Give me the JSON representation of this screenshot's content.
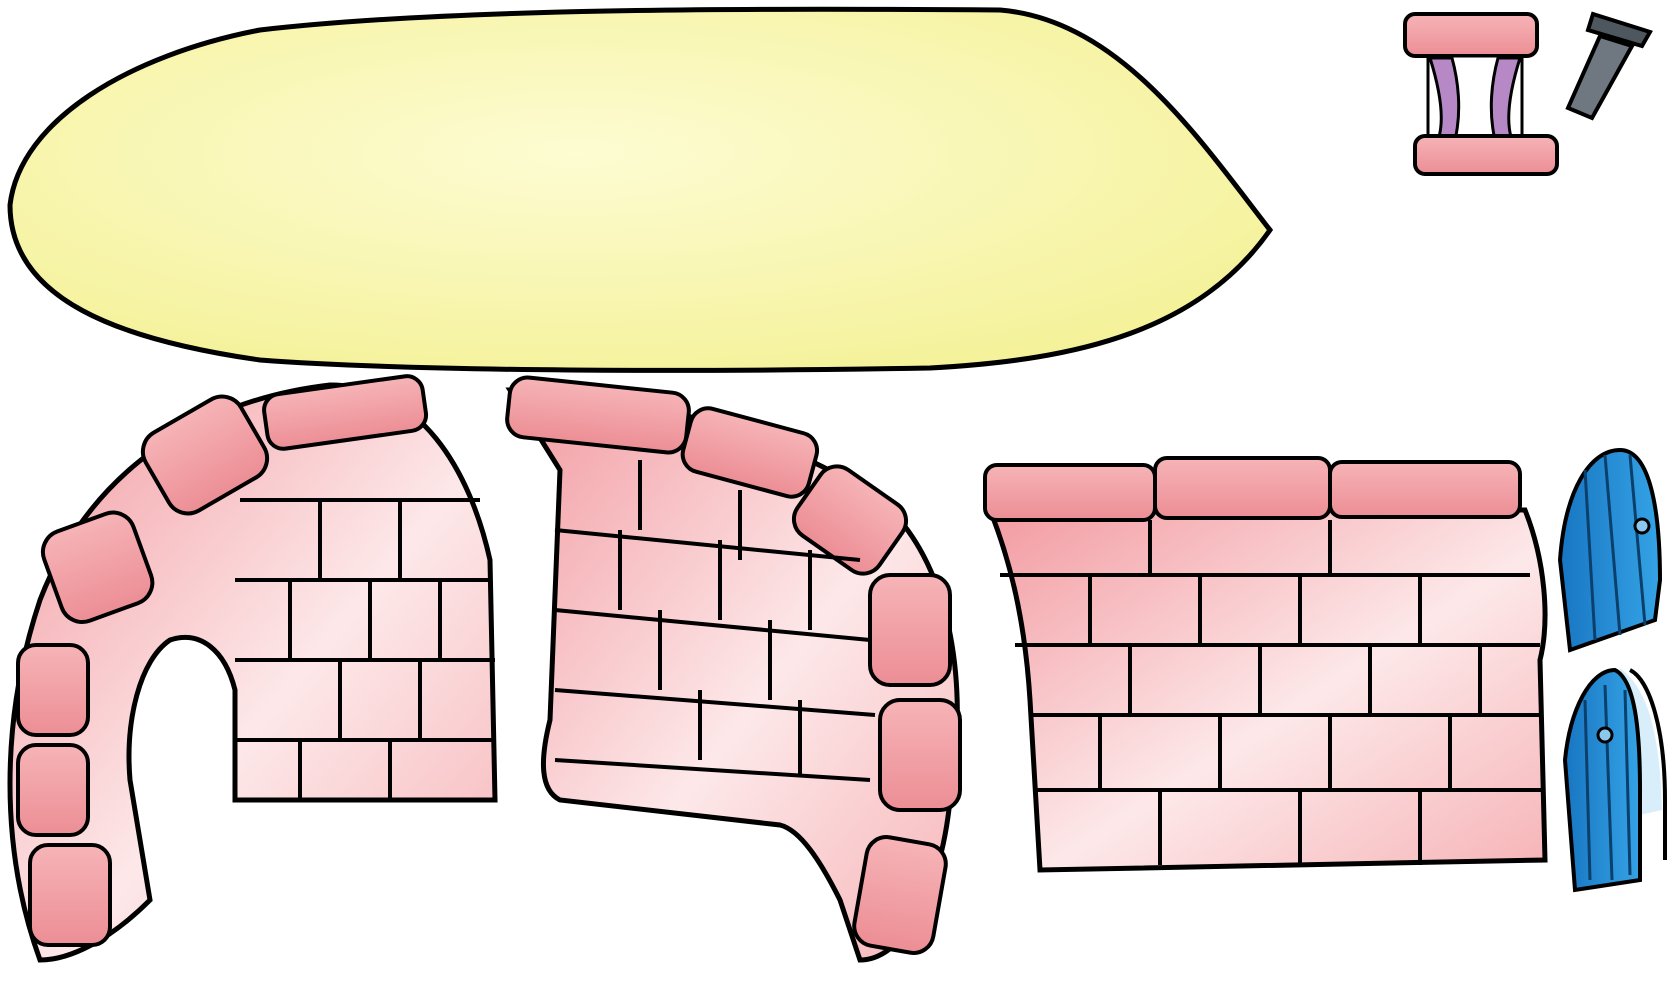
{
  "sprites": [
    {
      "id": "roof",
      "icon": "roof-slab-icon",
      "color": "#fbf8a8"
    },
    {
      "id": "wall-arch",
      "icon": "arch-wall-icon",
      "color": "#f4a7aa"
    },
    {
      "id": "wall-curved",
      "icon": "curved-wall-icon",
      "color": "#f4a7aa"
    },
    {
      "id": "wall-straight",
      "icon": "straight-wall-icon",
      "color": "#f4a7aa"
    },
    {
      "id": "window",
      "icon": "window-icon",
      "color": "#b788c6"
    },
    {
      "id": "chimney",
      "icon": "chimney-icon",
      "color": "#6f7880"
    },
    {
      "id": "door-closed",
      "icon": "door-closed-icon",
      "color": "#1f8fd8"
    },
    {
      "id": "door-open",
      "icon": "door-open-icon",
      "color": "#1f8fd8"
    }
  ],
  "palette": {
    "outline": "#000000",
    "roof": "#fbf8a8",
    "roof_light": "#fdfcd2",
    "stone_dark": "#ec8e95",
    "stone_mid": "#f6b4b7",
    "stone_light": "#fde8e9",
    "curtain": "#b788c6",
    "chimney": "#6f7880",
    "door": "#1f8fd8",
    "door_light": "#8cc8ee"
  }
}
